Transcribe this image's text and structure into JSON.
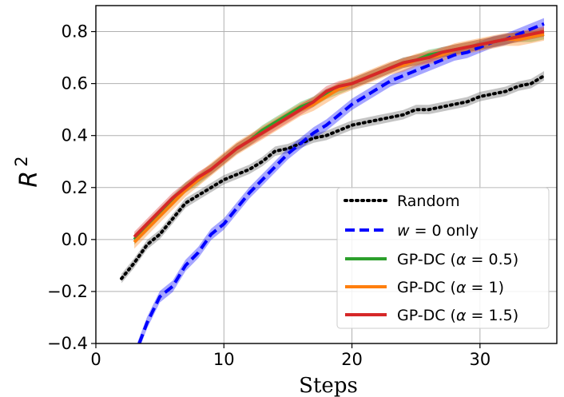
{
  "chart_data": {
    "type": "line",
    "xlabel": "Steps",
    "ylabel_main": "R",
    "ylabel_sup": "2",
    "xlim": [
      0,
      36
    ],
    "ylim": [
      -0.4,
      0.9
    ],
    "xticks": [
      0,
      10,
      20,
      30
    ],
    "xtick_labels": [
      "0",
      "10",
      "20",
      "30"
    ],
    "yticks": [
      -0.4,
      -0.2,
      0.0,
      0.2,
      0.4,
      0.6,
      0.8
    ],
    "ytick_labels": [
      "−0.4",
      "−0.2",
      "0.0",
      "0.2",
      "0.4",
      "0.6",
      "0.8"
    ],
    "grid": true,
    "legend_position": "lower-right",
    "series": [
      {
        "name": "Random",
        "color": "#000000",
        "style": "dotted",
        "band": 0.018,
        "x": [
          2,
          3,
          4,
          5,
          6,
          7,
          8,
          9,
          10,
          11,
          12,
          13,
          14,
          15,
          16,
          17,
          18,
          19,
          20,
          21,
          22,
          23,
          24,
          25,
          26,
          27,
          28,
          29,
          30,
          31,
          32,
          33,
          34,
          35
        ],
        "y": [
          -0.15,
          -0.09,
          -0.02,
          0.02,
          0.08,
          0.14,
          0.17,
          0.2,
          0.23,
          0.25,
          0.27,
          0.3,
          0.34,
          0.35,
          0.37,
          0.39,
          0.4,
          0.42,
          0.44,
          0.45,
          0.46,
          0.47,
          0.48,
          0.5,
          0.5,
          0.51,
          0.52,
          0.53,
          0.55,
          0.56,
          0.57,
          0.59,
          0.6,
          0.63
        ]
      },
      {
        "name": "w = 0 only",
        "legend_parts": [
          "w",
          " = 0 only"
        ],
        "color": "#0000ff",
        "style": "dashed",
        "band": 0.022,
        "x": [
          2,
          3,
          4,
          5,
          6,
          7,
          8,
          9,
          10,
          11,
          12,
          13,
          14,
          15,
          16,
          17,
          18,
          19,
          20,
          21,
          22,
          23,
          24,
          25,
          26,
          27,
          28,
          29,
          30,
          31,
          32,
          33,
          34,
          35
        ],
        "y": [
          -0.55,
          -0.45,
          -0.32,
          -0.22,
          -0.18,
          -0.1,
          -0.05,
          0.02,
          0.06,
          0.12,
          0.18,
          0.23,
          0.28,
          0.33,
          0.37,
          0.41,
          0.44,
          0.48,
          0.52,
          0.55,
          0.58,
          0.61,
          0.63,
          0.65,
          0.67,
          0.69,
          0.71,
          0.72,
          0.74,
          0.76,
          0.77,
          0.79,
          0.81,
          0.83
        ]
      },
      {
        "name": "GP-DC (α = 0.5)",
        "legend_parts": [
          "GP-DC (",
          "α",
          " = 0.5)"
        ],
        "color": "#2ca02c",
        "style": "solid",
        "band": 0.02,
        "x": [
          3,
          4,
          5,
          6,
          7,
          8,
          9,
          10,
          11,
          12,
          13,
          14,
          15,
          16,
          17,
          18,
          19,
          20,
          21,
          22,
          23,
          24,
          25,
          26,
          27,
          28,
          29,
          30,
          31,
          32,
          33,
          34,
          35
        ],
        "y": [
          0.0,
          0.05,
          0.1,
          0.15,
          0.2,
          0.23,
          0.27,
          0.31,
          0.35,
          0.38,
          0.42,
          0.45,
          0.48,
          0.51,
          0.53,
          0.56,
          0.58,
          0.6,
          0.62,
          0.64,
          0.66,
          0.68,
          0.69,
          0.71,
          0.72,
          0.73,
          0.74,
          0.75,
          0.76,
          0.77,
          0.78,
          0.78,
          0.79
        ]
      },
      {
        "name": "GP-DC (α = 1)",
        "legend_parts": [
          "GP-DC (",
          "α",
          " = 1)"
        ],
        "color": "#ff7f0e",
        "style": "solid",
        "band": 0.025,
        "x": [
          3,
          4,
          5,
          6,
          7,
          8,
          9,
          10,
          11,
          12,
          13,
          14,
          15,
          16,
          17,
          18,
          19,
          20,
          21,
          22,
          23,
          24,
          25,
          26,
          27,
          28,
          29,
          30,
          31,
          32,
          33,
          34,
          35
        ],
        "y": [
          -0.01,
          0.04,
          0.09,
          0.14,
          0.19,
          0.23,
          0.27,
          0.31,
          0.35,
          0.38,
          0.41,
          0.44,
          0.47,
          0.5,
          0.52,
          0.55,
          0.58,
          0.6,
          0.62,
          0.64,
          0.66,
          0.67,
          0.69,
          0.7,
          0.71,
          0.73,
          0.74,
          0.75,
          0.76,
          0.77,
          0.77,
          0.78,
          0.79
        ]
      },
      {
        "name": "GP-DC (α = 1.5)",
        "legend_parts": [
          "GP-DC (",
          "α",
          " = 1.5)"
        ],
        "color": "#d62728",
        "style": "solid",
        "band": 0.02,
        "x": [
          3,
          4,
          5,
          6,
          7,
          8,
          9,
          10,
          11,
          12,
          13,
          14,
          15,
          16,
          17,
          18,
          19,
          20,
          21,
          22,
          23,
          24,
          25,
          26,
          27,
          28,
          29,
          30,
          31,
          32,
          33,
          34,
          35
        ],
        "y": [
          0.01,
          0.06,
          0.11,
          0.16,
          0.2,
          0.24,
          0.27,
          0.31,
          0.35,
          0.38,
          0.41,
          0.44,
          0.47,
          0.5,
          0.53,
          0.57,
          0.59,
          0.6,
          0.62,
          0.64,
          0.66,
          0.68,
          0.69,
          0.7,
          0.72,
          0.73,
          0.74,
          0.75,
          0.76,
          0.77,
          0.78,
          0.79,
          0.8
        ]
      }
    ]
  }
}
